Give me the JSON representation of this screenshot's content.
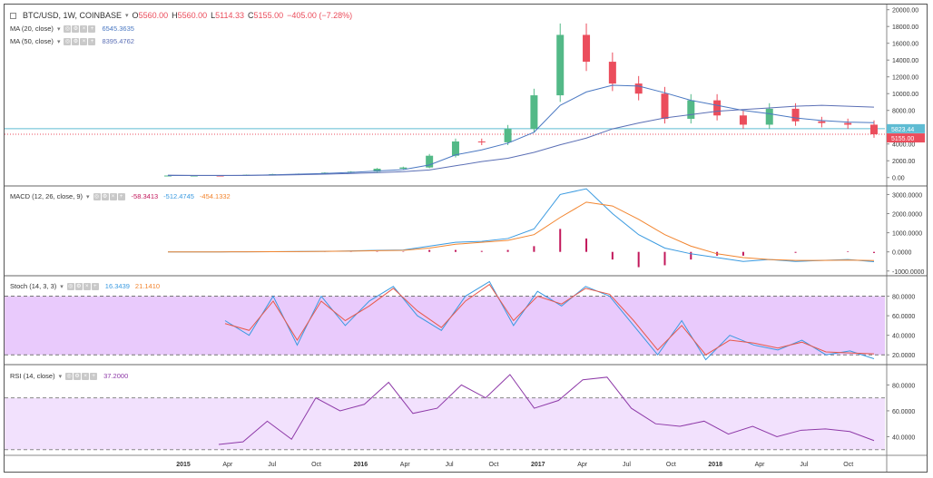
{
  "header": {
    "symbol": "BTC/USD, 1W, COINBASE",
    "ohlc": [
      {
        "k": "O",
        "v": "5560.00"
      },
      {
        "k": "H",
        "v": "5560.00"
      },
      {
        "k": "L",
        "v": "5114.33"
      },
      {
        "k": "C",
        "v": "5155.00"
      }
    ],
    "change": "−405.00 (−7.28%)"
  },
  "indicators": {
    "ma20": {
      "label": "MA (20, close)",
      "value": "6545.3635"
    },
    "ma50": {
      "label": "MA (50, close)",
      "value": "8395.4762"
    },
    "macd": {
      "label": "MACD (12, 26, close, 9)",
      "values": [
        "-58.3413",
        "-512.4745",
        "-454.1332"
      ]
    },
    "stoch": {
      "label": "Stoch (14, 3, 3)",
      "values": [
        "16.3439",
        "21.1410"
      ]
    },
    "rsi": {
      "label": "RSI (14, close)",
      "value": "37.2000"
    }
  },
  "price_badges": {
    "horizontal_line": "5823.44",
    "last": "5155.00"
  },
  "colors": {
    "up": "#53b987",
    "down": "#eb4d5c",
    "ma20": "#4a78c2",
    "ma50": "#5b6fb5",
    "macd": "#3a9ae0",
    "signal": "#f2852f",
    "hist": "#c2185b",
    "stoch_k": "#3a9ae0",
    "stoch_d": "#e8594a",
    "band": "#e3bdfb",
    "rsi": "#8e3aa8",
    "hline": "#5fbcd3"
  },
  "chart_data": [
    {
      "type": "candlestick",
      "title": "BTC/USD, 1W, COINBASE",
      "x_ticks": [
        "2015",
        "Apr",
        "Jul",
        "Oct",
        "2016",
        "Apr",
        "Jul",
        "Oct",
        "2017",
        "Apr",
        "Jul",
        "Oct",
        "2018",
        "Apr",
        "Jul",
        "Oct"
      ],
      "y_ticks": [
        "0.00",
        "2000.00",
        "4000.00",
        "6000.00",
        "8000.00",
        "10000.00",
        "12000.00",
        "14000.00",
        "16000.00",
        "18000.00",
        "20000.00"
      ],
      "ylim": [
        -1000,
        20400
      ],
      "x": [
        "2015-02",
        "2015-05",
        "2015-08",
        "2015-11",
        "2016-02",
        "2016-05",
        "2016-08",
        "2016-11",
        "2017-02",
        "2017-04",
        "2017-06",
        "2017-08",
        "2017-09",
        "2017-10",
        "2017-11",
        "2017-12",
        "2017-12b",
        "2018-01",
        "2018-02",
        "2018-03",
        "2018-04",
        "2018-05",
        "2018-06",
        "2018-07",
        "2018-08",
        "2018-09",
        "2018-10",
        "2018-11"
      ],
      "close": [
        240,
        240,
        230,
        330,
        410,
        450,
        580,
        700,
        1050,
        1200,
        2600,
        4300,
        4200,
        5800,
        9800,
        17000,
        13800,
        11200,
        10000,
        7000,
        9200,
        7400,
        6300,
        8200,
        6700,
        6500,
        6300,
        5155
      ],
      "series": [
        {
          "name": "MA (20, close)",
          "values": [
            240,
            240,
            238,
            260,
            330,
            410,
            480,
            610,
            780,
            950,
            1500,
            2700,
            3300,
            4100,
            5400,
            8600,
            10200,
            11000,
            10900,
            10100,
            9200,
            8600,
            8000,
            7600,
            7100,
            6800,
            6600,
            6545
          ]
        },
        {
          "name": "MA (50, close)",
          "values": [
            280,
            260,
            250,
            250,
            280,
            340,
            400,
            480,
            580,
            700,
            900,
            1400,
            1900,
            2300,
            3000,
            3900,
            4700,
            5800,
            6500,
            7100,
            7500,
            7900,
            8100,
            8300,
            8500,
            8600,
            8500,
            8395
          ]
        }
      ]
    },
    {
      "type": "line",
      "title": "MACD (12, 26, close, 9)",
      "y_ticks": [
        "-1000.0000",
        "0.0000",
        "1000.0000",
        "2000.0000",
        "3000.0000"
      ],
      "ylim": [
        -1200,
        3400
      ],
      "series": [
        {
          "name": "MACD",
          "values": [
            0,
            0,
            0,
            5,
            10,
            20,
            30,
            50,
            80,
            100,
            300,
            500,
            550,
            700,
            1200,
            3000,
            3300,
            2000,
            900,
            200,
            -100,
            -300,
            -500,
            -400,
            -500,
            -450,
            -400,
            -512
          ]
        },
        {
          "name": "Signal",
          "values": [
            0,
            0,
            0,
            5,
            8,
            15,
            25,
            40,
            60,
            80,
            200,
            400,
            500,
            600,
            900,
            1800,
            2600,
            2400,
            1700,
            900,
            300,
            -100,
            -300,
            -400,
            -450,
            -450,
            -430,
            -454
          ]
        }
      ]
    },
    {
      "type": "line",
      "title": "Stoch (14, 3, 3)",
      "y_ticks": [
        "20.0000",
        "40.0000",
        "60.0000",
        "80.0000",
        "100.0000"
      ],
      "ylim": [
        10,
        100
      ],
      "series": [
        {
          "name": "%K",
          "values": [
            55,
            40,
            80,
            30,
            80,
            50,
            75,
            90,
            60,
            45,
            80,
            95,
            50,
            85,
            70,
            90,
            80,
            50,
            20,
            55,
            15,
            40,
            30,
            25,
            35,
            20,
            24,
            16
          ]
        },
        {
          "name": "%D",
          "values": [
            52,
            45,
            75,
            35,
            75,
            55,
            70,
            88,
            65,
            48,
            75,
            92,
            55,
            80,
            72,
            88,
            82,
            55,
            25,
            50,
            20,
            35,
            32,
            27,
            33,
            23,
            22,
            21
          ]
        }
      ]
    },
    {
      "type": "line",
      "title": "RSI (14, close)",
      "y_ticks": [
        "40.0000",
        "60.0000",
        "80.0000"
      ],
      "ylim": [
        27,
        95
      ],
      "series": [
        {
          "name": "RSI",
          "values": [
            34,
            36,
            52,
            38,
            70,
            60,
            65,
            82,
            58,
            62,
            80,
            70,
            88,
            62,
            68,
            84,
            86,
            62,
            50,
            48,
            52,
            42,
            48,
            40,
            45,
            46,
            44,
            37
          ]
        }
      ]
    }
  ]
}
